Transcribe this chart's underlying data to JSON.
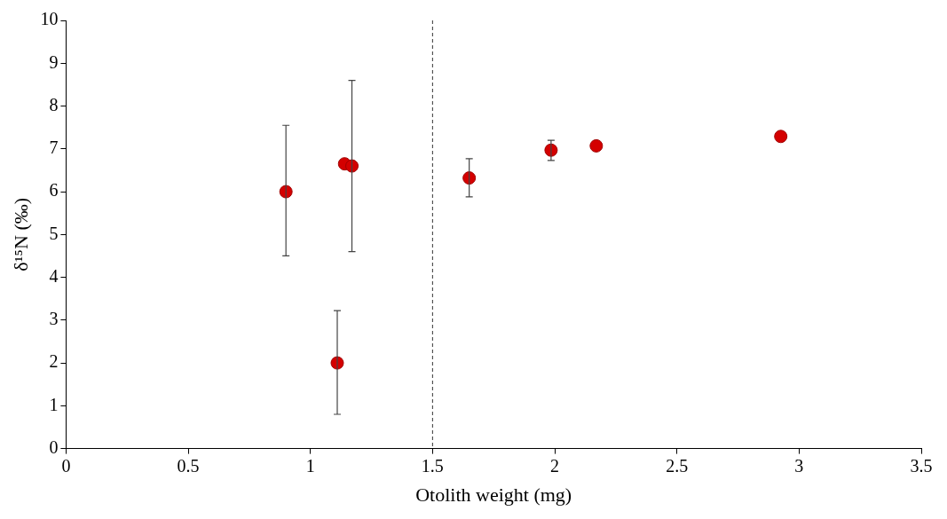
{
  "chart_data": {
    "type": "scatter",
    "xlabel": "Otolith weight (mg)",
    "ylabel": "δ¹⁵N (‰)",
    "x": [
      0.9,
      1.11,
      1.14,
      1.17,
      1.65,
      1.985,
      2.17,
      2.925
    ],
    "values": [
      6.0,
      2.0,
      6.65,
      6.6,
      6.32,
      6.97,
      7.07,
      7.29
    ],
    "errors": [
      [
        4.5,
        7.55
      ],
      [
        0.8,
        3.22
      ],
      null,
      [
        4.6,
        8.6
      ],
      [
        5.88,
        6.77
      ],
      [
        6.73,
        7.2
      ],
      null,
      null
    ],
    "color": "#d40000",
    "marker": "circle",
    "xlim": [
      0,
      3.5
    ],
    "xticks": [
      0,
      0.5,
      1,
      1.5,
      2,
      2.5,
      3,
      3.5
    ],
    "ylim": [
      0,
      10
    ],
    "yticks": [
      0,
      1,
      2,
      3,
      4,
      5,
      6,
      7,
      8,
      9,
      10
    ],
    "grid": false,
    "legend": false,
    "ref_lines": [
      {
        "axis": "x",
        "value": 1.5,
        "line_style": "dashed",
        "color": "#333333"
      }
    ]
  }
}
